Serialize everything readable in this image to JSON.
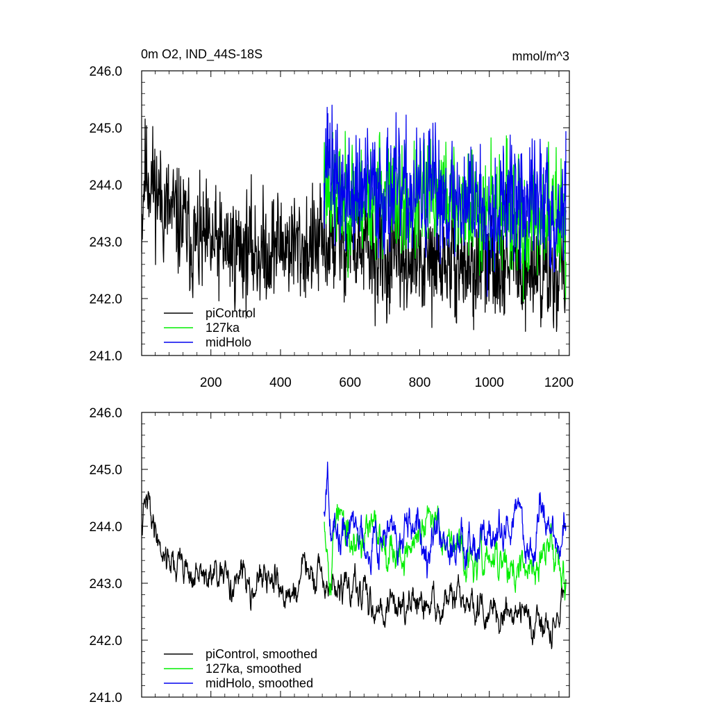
{
  "chart_data": [
    {
      "type": "line",
      "title": "0m O2, IND_44S-18S",
      "units": "mmol/m^3",
      "xlim": [
        1,
        1230
      ],
      "ylim": [
        241.0,
        246.0
      ],
      "yticks": [
        241.0,
        242.0,
        243.0,
        244.0,
        245.0,
        246.0
      ],
      "ytick_labels": [
        "241.0",
        "242.0",
        "243.0",
        "244.0",
        "245.0",
        "246.0"
      ],
      "xticks": [
        200,
        400,
        600,
        800,
        1000,
        1200
      ],
      "xtick_labels": [
        "200",
        "400",
        "600",
        "800",
        "1000",
        "1200"
      ],
      "legend_position": "bottom-left",
      "series": [
        {
          "name": "piControl",
          "color": "#000000",
          "x_start": 1,
          "x_end": 1220,
          "anchors": [
            [
              1,
              243.4
            ],
            [
              10,
              244.3
            ],
            [
              20,
              244.2
            ],
            [
              30,
              244.1
            ],
            [
              45,
              243.9
            ],
            [
              60,
              243.7
            ],
            [
              80,
              243.5
            ],
            [
              100,
              243.4
            ],
            [
              120,
              243.3
            ],
            [
              150,
              243.0
            ],
            [
              200,
              242.9
            ],
            [
              250,
              242.9
            ],
            [
              300,
              242.9
            ],
            [
              350,
              242.8
            ],
            [
              400,
              243.0
            ],
            [
              450,
              242.9
            ],
            [
              500,
              242.9
            ],
            [
              550,
              243.0
            ],
            [
              600,
              243.0
            ],
            [
              650,
              242.8
            ],
            [
              700,
              242.6
            ],
            [
              750,
              242.8
            ],
            [
              800,
              242.6
            ],
            [
              850,
              242.6
            ],
            [
              900,
              242.7
            ],
            [
              950,
              242.5
            ],
            [
              1000,
              242.6
            ],
            [
              1050,
              242.8
            ],
            [
              1100,
              242.6
            ],
            [
              1150,
              242.4
            ],
            [
              1200,
              242.5
            ],
            [
              1220,
              242.6
            ]
          ],
          "noise": 0.62,
          "seed": 11
        },
        {
          "name": "127ka",
          "color": "#00ee00",
          "x_start": 525,
          "x_end": 1220,
          "anchors": [
            [
              525,
              244.3
            ],
            [
              560,
              243.7
            ],
            [
              600,
              243.8
            ],
            [
              650,
              243.8
            ],
            [
              700,
              243.9
            ],
            [
              750,
              243.6
            ],
            [
              800,
              243.7
            ],
            [
              850,
              243.9
            ],
            [
              900,
              243.7
            ],
            [
              950,
              243.5
            ],
            [
              1000,
              243.7
            ],
            [
              1050,
              243.5
            ],
            [
              1100,
              243.2
            ],
            [
              1150,
              243.5
            ],
            [
              1200,
              243.5
            ],
            [
              1220,
              243.3
            ]
          ],
          "noise": 0.65,
          "seed": 23
        },
        {
          "name": "midHolo",
          "color": "#0000ee",
          "x_start": 525,
          "x_end": 1220,
          "anchors": [
            [
              525,
              244.5
            ],
            [
              540,
              244.6
            ],
            [
              560,
              243.9
            ],
            [
              600,
              243.8
            ],
            [
              650,
              243.9
            ],
            [
              700,
              243.9
            ],
            [
              750,
              243.8
            ],
            [
              800,
              243.8
            ],
            [
              850,
              243.9
            ],
            [
              900,
              243.7
            ],
            [
              950,
              243.8
            ],
            [
              1000,
              243.6
            ],
            [
              1050,
              243.7
            ],
            [
              1100,
              243.6
            ],
            [
              1150,
              243.8
            ],
            [
              1200,
              243.4
            ],
            [
              1220,
              244.0
            ]
          ],
          "noise": 0.68,
          "seed": 37
        }
      ]
    },
    {
      "type": "line",
      "xlim": [
        1,
        1230
      ],
      "ylim": [
        241.0,
        246.0
      ],
      "yticks": [
        241.0,
        242.0,
        243.0,
        244.0,
        245.0,
        246.0
      ],
      "ytick_labels": [
        "241.0",
        "242.0",
        "243.0",
        "244.0",
        "245.0",
        "246.0"
      ],
      "legend_position": "bottom-left",
      "series": [
        {
          "name": "piControl, smoothed",
          "color": "#000000",
          "x_start": 1,
          "x_end": 1220,
          "anchors": [
            [
              1,
              243.9
            ],
            [
              10,
              244.3
            ],
            [
              20,
              244.4
            ],
            [
              30,
              244.2
            ],
            [
              45,
              243.9
            ],
            [
              60,
              243.6
            ],
            [
              80,
              243.5
            ],
            [
              100,
              243.3
            ],
            [
              120,
              243.4
            ],
            [
              150,
              243.1
            ],
            [
              200,
              243.1
            ],
            [
              250,
              243.0
            ],
            [
              300,
              243.1
            ],
            [
              350,
              243.0
            ],
            [
              400,
              243.0
            ],
            [
              420,
              242.7
            ],
            [
              450,
              243.0
            ],
            [
              470,
              243.3
            ],
            [
              500,
              243.0
            ],
            [
              550,
              242.9
            ],
            [
              600,
              242.9
            ],
            [
              650,
              242.7
            ],
            [
              700,
              242.6
            ],
            [
              750,
              242.7
            ],
            [
              800,
              242.5
            ],
            [
              850,
              242.6
            ],
            [
              900,
              242.7
            ],
            [
              950,
              242.6
            ],
            [
              1000,
              242.4
            ],
            [
              1050,
              242.6
            ],
            [
              1100,
              242.5
            ],
            [
              1150,
              242.3
            ],
            [
              1180,
              242.1
            ],
            [
              1200,
              242.5
            ],
            [
              1220,
              243.0
            ]
          ],
          "noise": 0.24,
          "seed": 41
        },
        {
          "name": "127ka, smoothed",
          "color": "#00ee00",
          "x_start": 525,
          "x_end": 1220,
          "anchors": [
            [
              525,
              244.3
            ],
            [
              545,
              243.2
            ],
            [
              560,
              244.4
            ],
            [
              600,
              243.6
            ],
            [
              650,
              243.9
            ],
            [
              700,
              243.8
            ],
            [
              750,
              243.5
            ],
            [
              800,
              243.8
            ],
            [
              850,
              244.2
            ],
            [
              900,
              243.7
            ],
            [
              950,
              243.3
            ],
            [
              1000,
              243.4
            ],
            [
              1050,
              243.3
            ],
            [
              1100,
              243.1
            ],
            [
              1150,
              243.5
            ],
            [
              1200,
              243.6
            ],
            [
              1220,
              243.1
            ]
          ],
          "noise": 0.28,
          "seed": 53
        },
        {
          "name": "midHolo, smoothed",
          "color": "#0000ee",
          "x_start": 525,
          "x_end": 1220,
          "anchors": [
            [
              525,
              244.3
            ],
            [
              535,
              245.2
            ],
            [
              545,
              244.3
            ],
            [
              560,
              243.6
            ],
            [
              600,
              244.0
            ],
            [
              650,
              243.8
            ],
            [
              700,
              243.9
            ],
            [
              750,
              243.7
            ],
            [
              800,
              243.8
            ],
            [
              850,
              244.0
            ],
            [
              900,
              243.7
            ],
            [
              950,
              243.9
            ],
            [
              1000,
              243.8
            ],
            [
              1050,
              243.8
            ],
            [
              1080,
              244.4
            ],
            [
              1100,
              243.8
            ],
            [
              1130,
              243.6
            ],
            [
              1150,
              244.4
            ],
            [
              1200,
              243.6
            ],
            [
              1220,
              244.1
            ]
          ],
          "noise": 0.3,
          "seed": 67
        }
      ]
    }
  ]
}
